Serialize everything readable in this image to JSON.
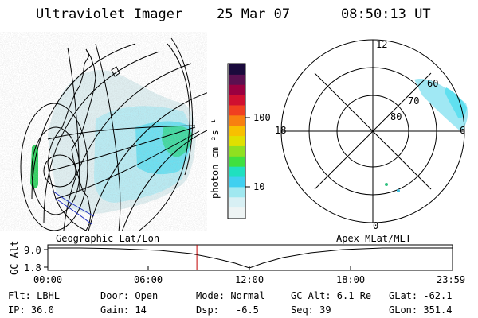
{
  "header": {
    "instrument": "Ultraviolet Imager",
    "date": "25 Mar 07",
    "time": "08:50:13 UT"
  },
  "colorbar": {
    "label": "photon cm⁻²s⁻¹",
    "ticks": [
      "100",
      "10"
    ],
    "colors": [
      "#1a0a3c",
      "#5a1050",
      "#9a0040",
      "#d01030",
      "#f04020",
      "#f88010",
      "#f8c000",
      "#e0e000",
      "#90e020",
      "#40e040",
      "#20e0c0",
      "#40d0f0",
      "#a0e8f0",
      "#d8f0f4",
      "#eef4f4"
    ]
  },
  "polar_plot": {
    "mlt_labels": {
      "top": "12",
      "left": "18",
      "right": "6",
      "bottom": "0"
    },
    "lat_labels": [
      "60",
      "70",
      "80"
    ]
  },
  "timeline": {
    "left_caption": "Geographic Lat/Lon",
    "right_caption": "Apex MLat/MLT",
    "y_axis_label": "GC Alt",
    "y_ticks": [
      "9.0",
      "1.8"
    ],
    "x_ticks": [
      "00:00",
      "06:00",
      "12:00",
      "18:00",
      "23:59"
    ],
    "marker_time_hours": 8.84,
    "marker_color": "#c00000"
  },
  "info": {
    "filter": "Flt: LBHL",
    "ip": "IP: 36.0",
    "door": "Door: Open",
    "gain": "Gain: 14",
    "mode": "Mode: Normal",
    "dsp_label": "Dsp:",
    "dsp_value": "-6.5",
    "gc_alt": "GC Alt: 6.1 Re",
    "seq": "Seq: 39",
    "glat": "GLat: -62.1",
    "glon": "GLon: 351.4"
  }
}
